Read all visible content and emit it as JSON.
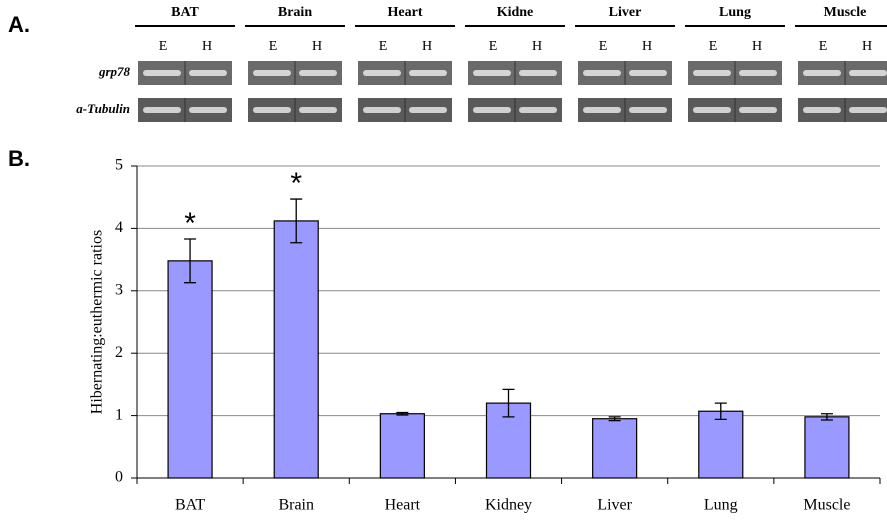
{
  "panel_a": {
    "label": "A.",
    "tissues": [
      "BAT",
      "Brain",
      "Heart",
      "Kidne",
      "Liver",
      "Lung",
      "Muscle"
    ],
    "lanes": [
      "E",
      "H"
    ],
    "rows": [
      "grp78",
      "a-Tubulin"
    ]
  },
  "panel_b": {
    "label": "B."
  },
  "chart_data": {
    "type": "bar",
    "y_label": "Hibernating:euthermic ratios",
    "categories": [
      "BAT",
      "Brain",
      "Heart",
      "Kidney",
      "Liver",
      "Lung",
      "Muscle"
    ],
    "values": [
      3.48,
      4.12,
      1.03,
      1.2,
      0.95,
      1.07,
      0.98
    ],
    "errors": [
      0.35,
      0.35,
      0.02,
      0.22,
      0.03,
      0.13,
      0.05
    ],
    "color": "#9999ff",
    "ylim": [
      0,
      5
    ],
    "yticks": [
      0,
      1,
      2,
      3,
      4,
      5
    ],
    "grid": true,
    "annotations": [
      {
        "text": "*",
        "category": "BAT"
      },
      {
        "text": "*",
        "category": "Brain"
      }
    ]
  }
}
